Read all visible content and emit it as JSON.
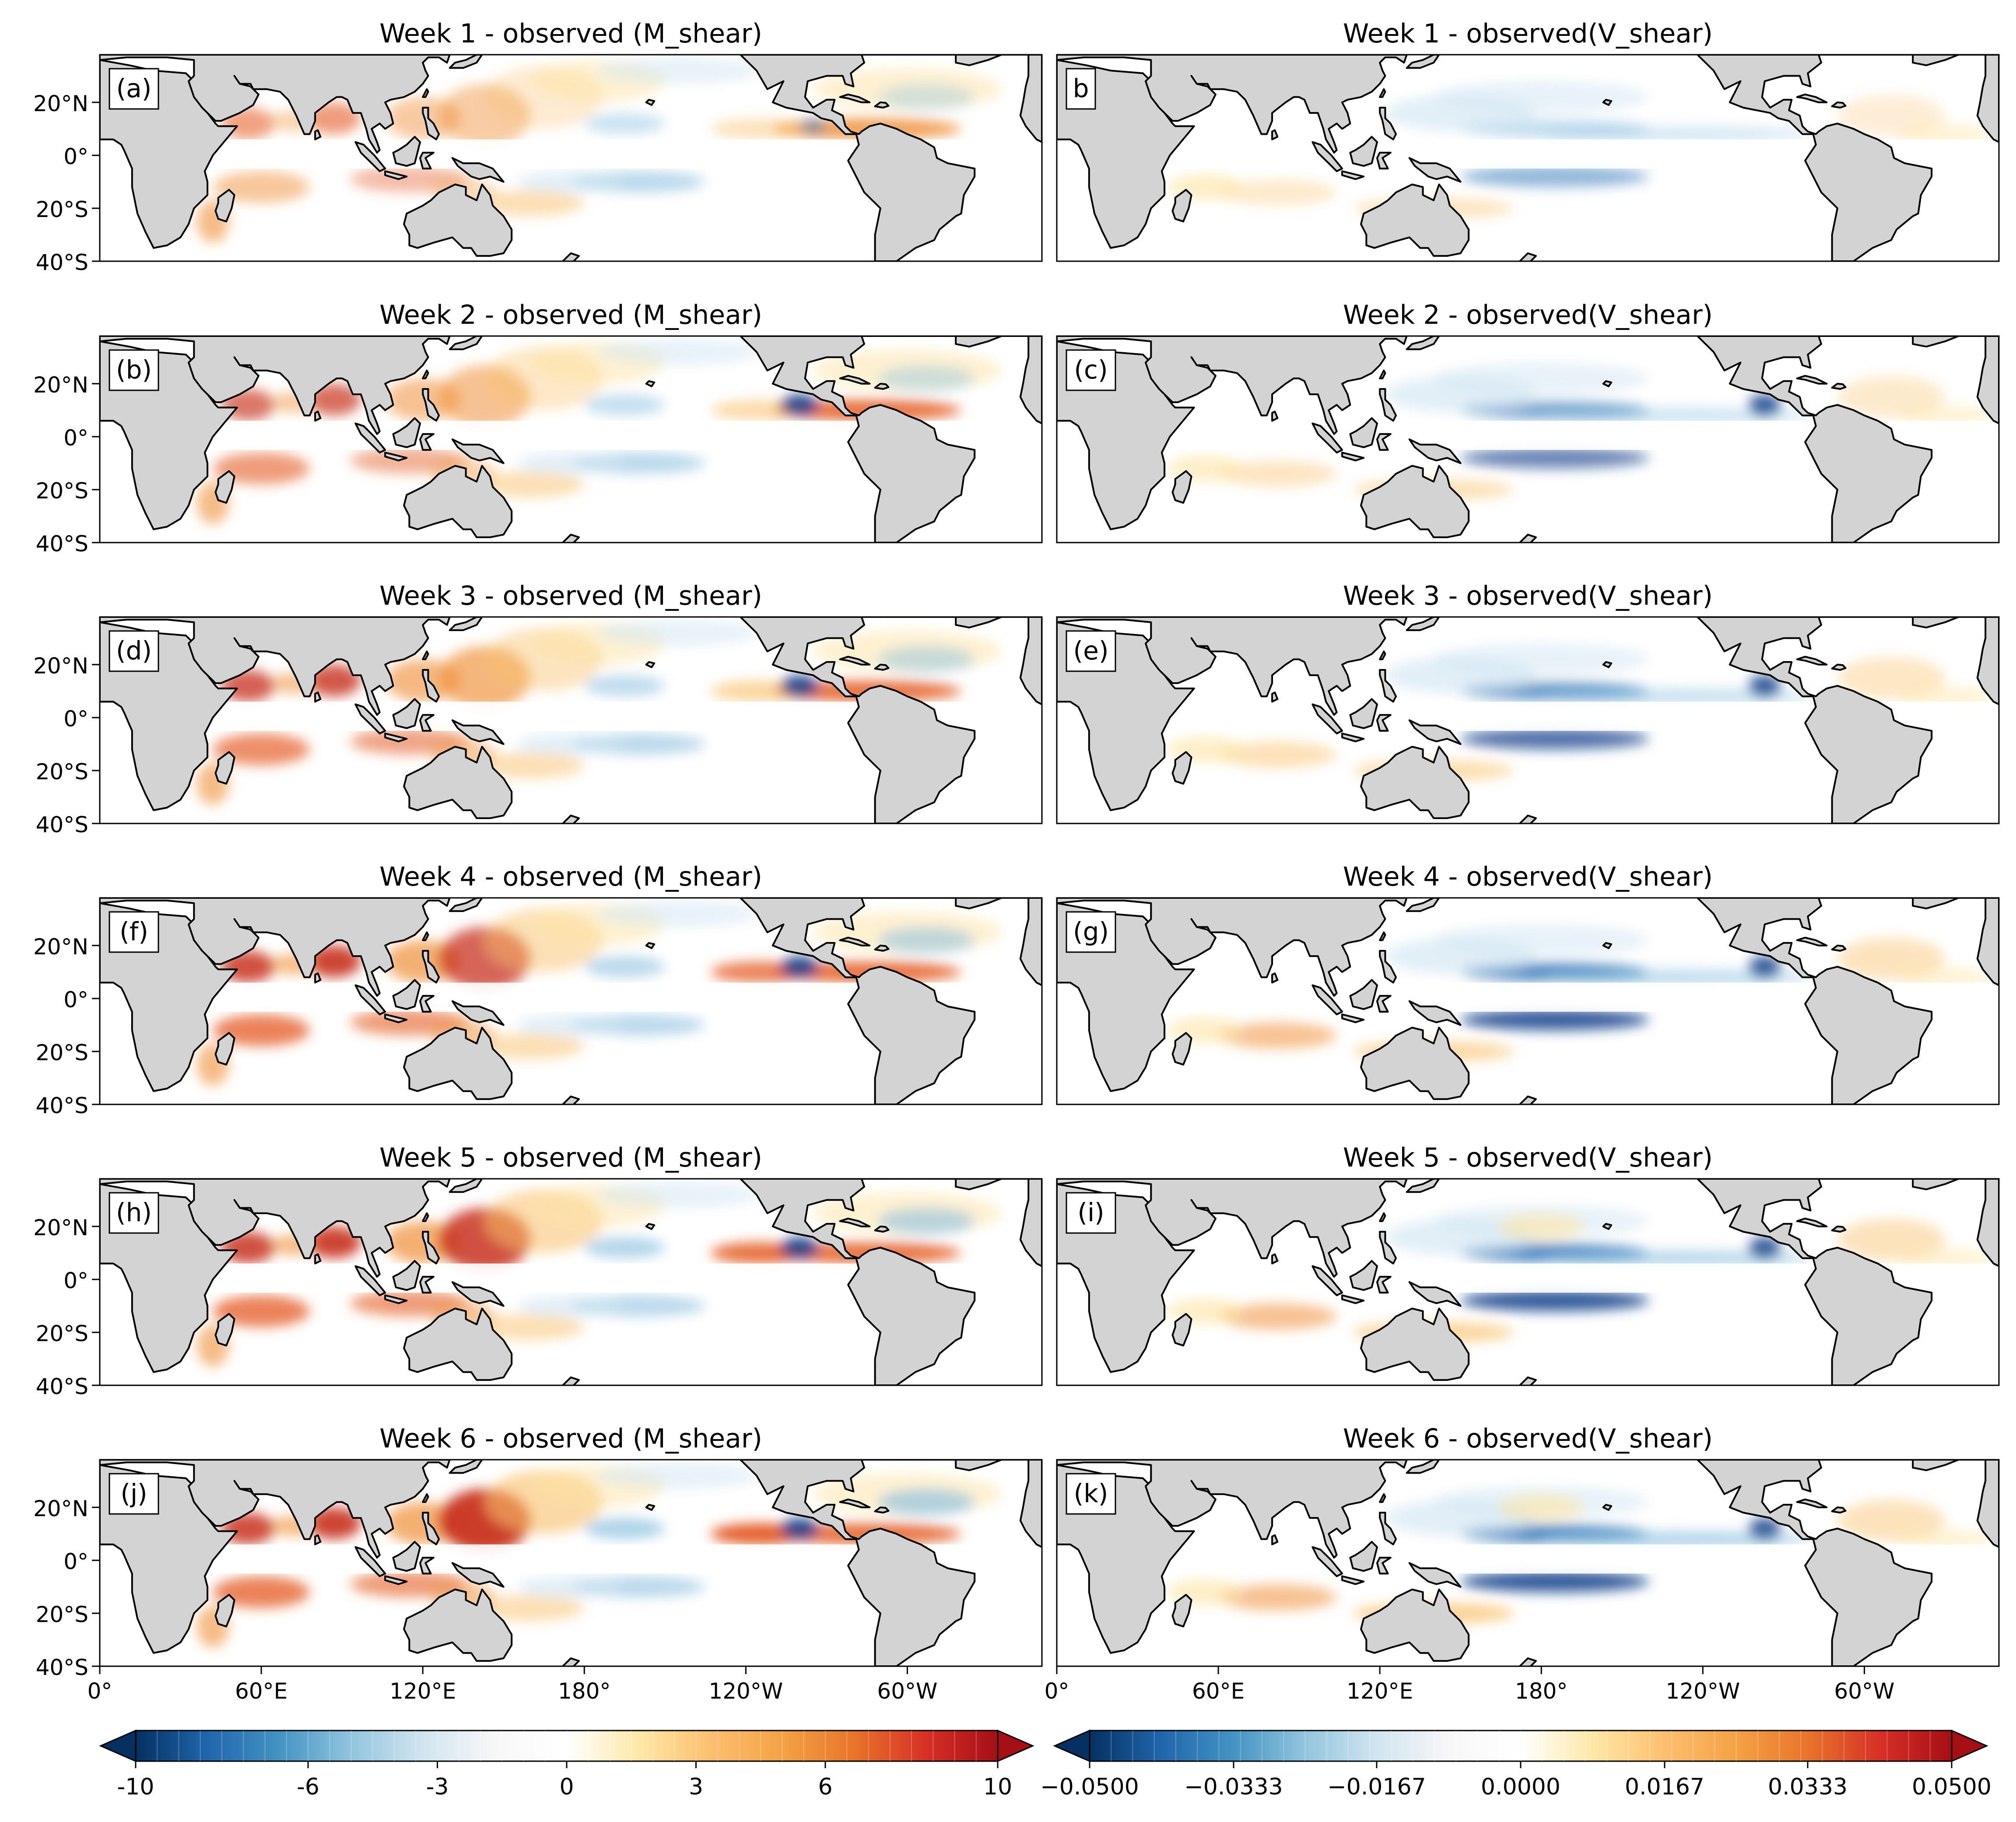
{
  "panels": [
    {
      "row": 0,
      "col": 0,
      "title": "Week 1 - observed (M_shear)",
      "label": "(a)",
      "variable": "M_shear",
      "week": 1
    },
    {
      "row": 0,
      "col": 1,
      "title": "Week 1 - observed(V_shear)",
      "label": "b",
      "variable": "V_shear",
      "week": 1
    },
    {
      "row": 1,
      "col": 0,
      "title": "Week 2 - observed (M_shear)",
      "label": "(b)",
      "variable": "M_shear",
      "week": 2
    },
    {
      "row": 1,
      "col": 1,
      "title": "Week 2 - observed(V_shear)",
      "label": "(c)",
      "variable": "V_shear",
      "week": 2
    },
    {
      "row": 2,
      "col": 0,
      "title": "Week 3 - observed (M_shear)",
      "label": "(d)",
      "variable": "M_shear",
      "week": 3
    },
    {
      "row": 2,
      "col": 1,
      "title": "Week 3 - observed(V_shear)",
      "label": "(e)",
      "variable": "V_shear",
      "week": 3
    },
    {
      "row": 3,
      "col": 0,
      "title": "Week 4 - observed (M_shear)",
      "label": "(f)",
      "variable": "M_shear",
      "week": 4
    },
    {
      "row": 3,
      "col": 1,
      "title": "Week 4 - observed(V_shear)",
      "label": "(g)",
      "variable": "V_shear",
      "week": 4
    },
    {
      "row": 4,
      "col": 0,
      "title": "Week 5 - observed (M_shear)",
      "label": "(h)",
      "variable": "M_shear",
      "week": 5
    },
    {
      "row": 4,
      "col": 1,
      "title": "Week 5 - observed(V_shear)",
      "label": "(i)",
      "variable": "V_shear",
      "week": 5
    },
    {
      "row": 5,
      "col": 0,
      "title": "Week 6 - observed (M_shear)",
      "label": "(j)",
      "variable": "M_shear",
      "week": 6
    },
    {
      "row": 5,
      "col": 1,
      "title": "Week 6 - observed(V_shear)",
      "label": "(k)",
      "variable": "V_shear",
      "week": 6
    }
  ],
  "map": {
    "lon_range": [
      0,
      350
    ],
    "lat_range": [
      -40,
      38
    ],
    "lat_ticks": [
      {
        "value": 20,
        "label": "20°N"
      },
      {
        "value": 0,
        "label": "0°"
      },
      {
        "value": -20,
        "label": "20°S"
      },
      {
        "value": -40,
        "label": "40°S"
      }
    ],
    "lon_ticks": [
      {
        "value": 0,
        "label": "0°"
      },
      {
        "value": 60,
        "label": "60°E"
      },
      {
        "value": 120,
        "label": "120°E"
      },
      {
        "value": 180,
        "label": "180°"
      },
      {
        "value": 240,
        "label": "120°W"
      },
      {
        "value": 300,
        "label": "60°W"
      }
    ],
    "land_color": "#d3d3d3",
    "coast_color": "#000000"
  },
  "colorbars": [
    {
      "variable": "M_shear",
      "range": [
        -10,
        10
      ],
      "tick_labels": [
        {
          "value": -10,
          "label": "-10"
        },
        {
          "value": -6,
          "label": "-6"
        },
        {
          "value": -3,
          "label": "-3"
        },
        {
          "value": 0,
          "label": "0"
        },
        {
          "value": 3,
          "label": "3"
        },
        {
          "value": 6,
          "label": "6"
        },
        {
          "value": 10,
          "label": "10"
        }
      ]
    },
    {
      "variable": "V_shear",
      "range": [
        -0.05,
        0.05
      ],
      "tick_labels": [
        {
          "value": -0.05,
          "label": "−0.0500"
        },
        {
          "value": -0.0333,
          "label": "−0.0333"
        },
        {
          "value": -0.0167,
          "label": "−0.0167"
        },
        {
          "value": 0,
          "label": "0.0000"
        },
        {
          "value": 0.0167,
          "label": "0.0167"
        },
        {
          "value": 0.0333,
          "label": "0.0333"
        },
        {
          "value": 0.05,
          "label": "0.0500"
        }
      ]
    }
  ],
  "colormap": [
    "#053061",
    "#2166ac",
    "#4393c3",
    "#92c5de",
    "#d1e5f0",
    "#f7f7f7",
    "#ffffff",
    "#fee8a8",
    "#fdbf6f",
    "#f4a245",
    "#e8742b",
    "#d73027",
    "#a50f15"
  ]
}
